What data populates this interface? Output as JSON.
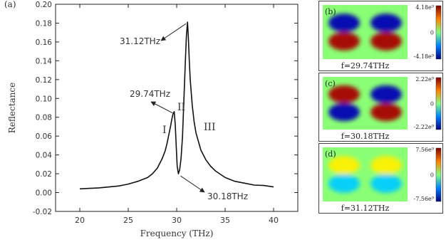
{
  "chart_data": [
    {
      "type": "line",
      "panel_label": "(a)",
      "title": "",
      "xlabel": "Frequency (THz)",
      "ylabel": "Reflectance",
      "xlim": [
        17.5,
        42.5
      ],
      "ylim": [
        -0.02,
        0.2
      ],
      "x_ticks": [
        "20",
        "25",
        "30",
        "35",
        "40"
      ],
      "y_ticks": [
        "-0.02",
        "0.00",
        "0.02",
        "0.04",
        "0.06",
        "0.08",
        "0.10",
        "0.12",
        "0.14",
        "0.16",
        "0.18",
        "0.20"
      ],
      "x_tick_values": [
        20,
        25,
        30,
        35,
        40
      ],
      "y_tick_values": [
        -0.02,
        0,
        0.02,
        0.04,
        0.06,
        0.08,
        0.1,
        0.12,
        0.14,
        0.16,
        0.18,
        0.2
      ],
      "grid": false,
      "series": [
        {
          "x": [
            20,
            22,
            24,
            25,
            26,
            27,
            27.5,
            28,
            28.5,
            28.8,
            29,
            29.2,
            29.4,
            29.5,
            29.6,
            29.74,
            29.85,
            29.95,
            30.05,
            30.18,
            30.3,
            30.45,
            30.6,
            30.75,
            30.9,
            31.0,
            31.12,
            31.2,
            31.3,
            31.4,
            31.6,
            31.8,
            32,
            32.5,
            33,
            33.5,
            34,
            35,
            36,
            37,
            38,
            39,
            40
          ],
          "y": [
            0.004,
            0.005,
            0.007,
            0.009,
            0.012,
            0.016,
            0.02,
            0.026,
            0.036,
            0.044,
            0.052,
            0.062,
            0.072,
            0.078,
            0.083,
            0.086,
            0.072,
            0.05,
            0.028,
            0.02,
            0.024,
            0.036,
            0.06,
            0.1,
            0.14,
            0.166,
            0.181,
            0.166,
            0.14,
            0.12,
            0.093,
            0.075,
            0.063,
            0.045,
            0.035,
            0.028,
            0.023,
            0.016,
            0.012,
            0.01,
            0.008,
            0.0075,
            0.006
          ]
        }
      ],
      "annotations": [
        {
          "text": "31.12THz",
          "x": 31.12,
          "y": 0.181
        },
        {
          "text": "29.74THz",
          "x": 29.74,
          "y": 0.086
        },
        {
          "text": "30.18THz",
          "x": 30.18,
          "y": 0.02
        }
      ],
      "region_labels": [
        "I",
        "II",
        "III"
      ]
    },
    {
      "type": "heatmap",
      "panel_label": "(b)",
      "caption": "f=29.74THz",
      "colorbar_ticks": [
        "4.18e⁹",
        "0",
        "-4.18e⁹"
      ],
      "colorbar_range": [
        -4180000000.0,
        4180000000.0
      ],
      "left_lobe": {
        "top": "negative",
        "bottom": "positive"
      },
      "right_lobe": {
        "top": "negative",
        "bottom": "positive"
      },
      "background": "near zero"
    },
    {
      "type": "heatmap",
      "panel_label": "(c)",
      "caption": "f=30.18THz",
      "colorbar_ticks": [
        "2.22e⁹",
        "0",
        "-2.22e⁹"
      ],
      "colorbar_range": [
        -2220000000.0,
        2220000000.0
      ],
      "left_lobe": {
        "top": "positive",
        "bottom": "negative"
      },
      "right_lobe": {
        "top": "negative",
        "bottom": "positive"
      },
      "background": "near zero"
    },
    {
      "type": "heatmap",
      "panel_label": "(d)",
      "caption": "f=31.12THz",
      "colorbar_ticks": [
        "7.56e⁹",
        "0",
        "-7.56e⁹"
      ],
      "colorbar_range": [
        -7560000000.0,
        7560000000.0
      ],
      "left_lobe": {
        "top": "weak positive",
        "bottom": "weak negative"
      },
      "right_lobe": {
        "top": "weak positive",
        "bottom": "weak negative"
      },
      "background": "near zero"
    }
  ]
}
